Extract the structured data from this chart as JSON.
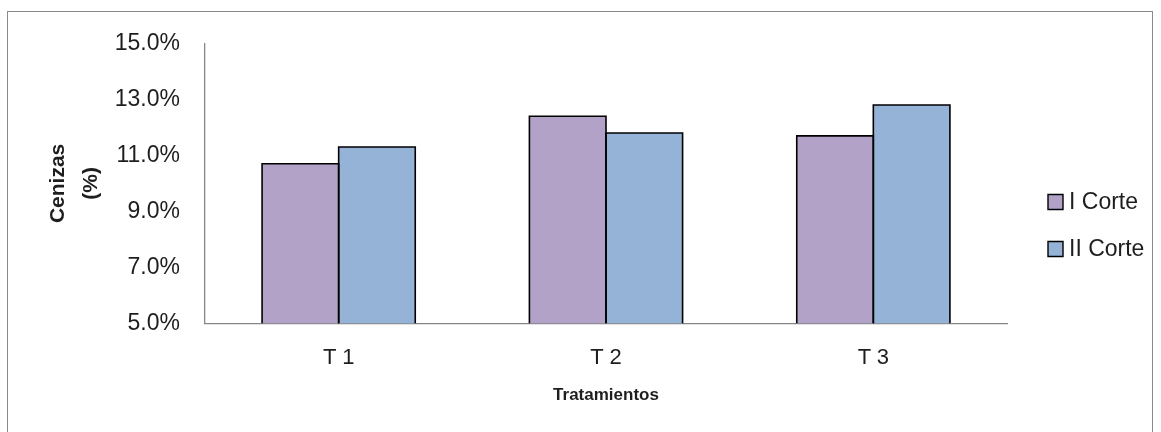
{
  "chart_data": {
    "type": "bar",
    "categories": [
      "T 1",
      "T 2",
      "T 3"
    ],
    "series": [
      {
        "name": "I Corte",
        "color": "#b3a2c7",
        "values": [
          10.7,
          12.4,
          11.7
        ]
      },
      {
        "name": "II Corte",
        "color": "#95b3d7",
        "values": [
          11.3,
          11.8,
          12.8
        ]
      }
    ],
    "xlabel": "Tratamientos",
    "ylabel": "Cenizas (%)",
    "ylim": [
      5,
      15
    ],
    "yticks": [
      {
        "value": 5,
        "label": "5.0%"
      },
      {
        "value": 7,
        "label": "7.0%"
      },
      {
        "value": 9,
        "label": "9.0%"
      },
      {
        "value": 11,
        "label": "11.0%"
      },
      {
        "value": 13,
        "label": "13.0%"
      },
      {
        "value": 15,
        "label": "15.0%"
      }
    ],
    "grid": false,
    "legend": "right"
  }
}
